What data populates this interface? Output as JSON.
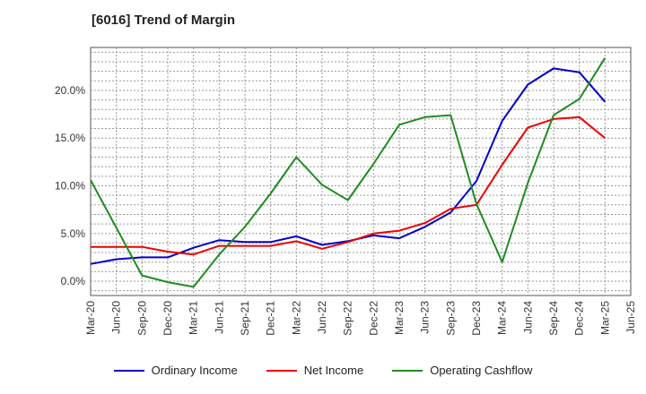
{
  "title": "[6016]  Trend of Margin",
  "chart_data": {
    "type": "line",
    "title": "[6016]  Trend of Margin",
    "xlabel": "",
    "ylabel": "",
    "x": [
      "Mar-20",
      "Jun-20",
      "Sep-20",
      "Dec-20",
      "Mar-21",
      "Jun-21",
      "Sep-21",
      "Dec-21",
      "Mar-22",
      "Jun-22",
      "Sep-22",
      "Dec-22",
      "Mar-23",
      "Jun-23",
      "Sep-23",
      "Dec-23",
      "Mar-24",
      "Jun-24",
      "Sep-24",
      "Dec-24",
      "Mar-25",
      "Jun-25"
    ],
    "ylim": [
      -1.5,
      24.5
    ],
    "yticks": [
      0,
      5,
      10,
      15,
      20
    ],
    "ytick_labels": [
      "0.0%",
      "5.0%",
      "10.0%",
      "15.0%",
      "20.0%"
    ],
    "grid": true,
    "legend_position": "bottom",
    "series": [
      {
        "name": "Ordinary Income",
        "color": "#0000cc",
        "values": [
          1.8,
          2.3,
          2.5,
          2.5,
          3.5,
          4.3,
          4.1,
          4.1,
          4.7,
          3.8,
          4.2,
          4.8,
          4.5,
          5.7,
          7.2,
          10.5,
          16.8,
          20.6,
          22.3,
          21.9,
          18.8,
          null
        ]
      },
      {
        "name": "Net Income",
        "color": "#ee0000",
        "values": [
          3.6,
          3.6,
          3.6,
          3.1,
          2.8,
          3.7,
          3.7,
          3.7,
          4.2,
          3.4,
          4.1,
          5.0,
          5.3,
          6.1,
          7.6,
          8.0,
          12.2,
          16.1,
          17.0,
          17.2,
          15.0,
          null
        ]
      },
      {
        "name": "Operating Cashflow",
        "color": "#228b22",
        "values": [
          10.6,
          5.6,
          0.6,
          -0.1,
          -0.6,
          2.8,
          5.7,
          9.2,
          13.0,
          10.1,
          8.5,
          12.3,
          16.4,
          17.2,
          17.4,
          8.1,
          2.0,
          10.3,
          17.4,
          19.1,
          23.4,
          null
        ]
      }
    ]
  }
}
